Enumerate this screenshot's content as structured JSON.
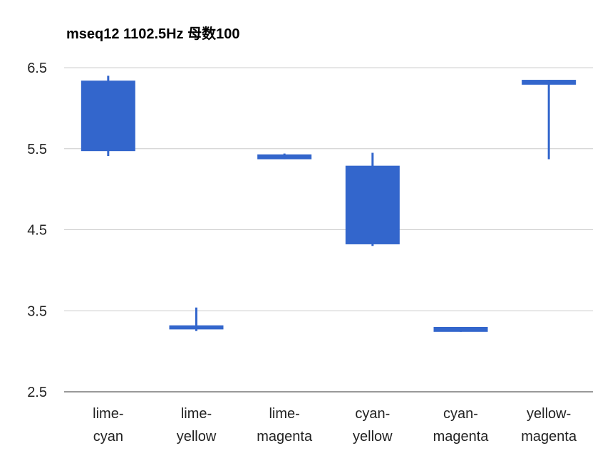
{
  "chart_data": {
    "type": "candlestick",
    "title": "mseq12 1102.5Hz 母数100",
    "xlabel": "",
    "ylabel": "",
    "ylim": [
      2.5,
      6.5
    ],
    "yticks": [
      2.5,
      3.5,
      4.5,
      5.5,
      6.5
    ],
    "ytick_labels": [
      "2.5",
      "3.5",
      "4.5",
      "5.5",
      "6.5"
    ],
    "grid": true,
    "legend": "none",
    "color": "#3366cc",
    "categories": [
      [
        "lime-",
        "cyan"
      ],
      [
        "lime-",
        "yellow"
      ],
      [
        "lime-",
        "magenta"
      ],
      [
        "cyan-",
        "yellow"
      ],
      [
        "cyan-",
        "magenta"
      ],
      [
        "yellow-",
        "magenta"
      ]
    ],
    "candles": [
      {
        "low": 5.41,
        "open": 5.47,
        "close": 6.34,
        "high": 6.4
      },
      {
        "low": 3.25,
        "open": 3.27,
        "close": 3.32,
        "high": 3.54
      },
      {
        "low": 5.37,
        "open": 5.37,
        "close": 5.43,
        "high": 5.44
      },
      {
        "low": 4.3,
        "open": 4.32,
        "close": 5.29,
        "high": 5.45
      },
      {
        "low": 3.24,
        "open": 3.24,
        "close": 3.3,
        "high": 3.3
      },
      {
        "low": 5.37,
        "open": 6.29,
        "close": 6.35,
        "high": 6.35
      }
    ]
  }
}
